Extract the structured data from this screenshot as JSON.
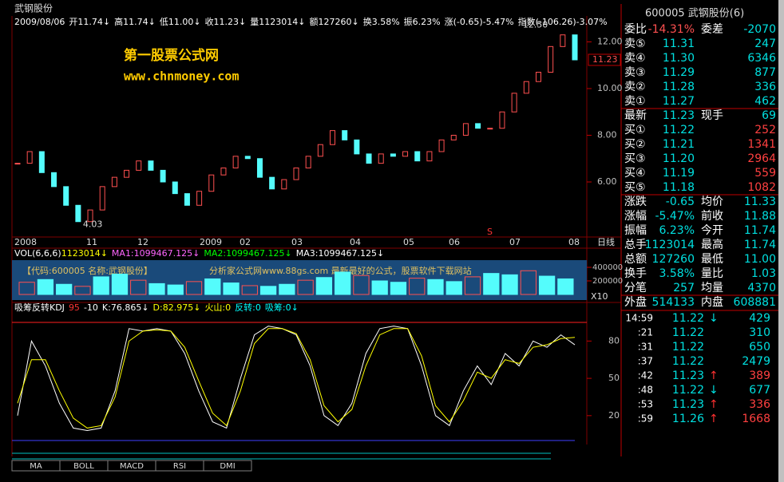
{
  "header": {
    "name": "武钢股份",
    "items": [
      "2009/08/06",
      "开11.74↓",
      "高11.74↓",
      "低11.00↓",
      "收11.23↓",
      "量1123014↓",
      "额127260↓",
      "换3.58%",
      "振6.23%",
      "涨(-0.65)-5.47%",
      "指数(-106.26)-3.07%"
    ]
  },
  "watermark": {
    "title": "第一股票公式网",
    "url": "www.chnmoney.com"
  },
  "price_chart": {
    "type": "candle",
    "ylim": [
      3.71,
      13.11
    ],
    "yticks": [
      {
        "value": 6,
        "label": "6.00"
      },
      {
        "value": 8,
        "label": "8.00"
      },
      {
        "value": 10,
        "label": "10.00"
      },
      {
        "value": 12,
        "label": "12.00"
      }
    ],
    "closes": [
      6.8,
      7.3,
      6.4,
      5.8,
      5.0,
      4.3,
      4.8,
      5.8,
      6.2,
      6.5,
      6.9,
      6.5,
      6.0,
      5.5,
      5.0,
      5.6,
      6.3,
      6.6,
      7.1,
      7.0,
      6.2,
      5.7,
      6.1,
      6.6,
      7.1,
      7.6,
      8.2,
      7.8,
      7.2,
      6.8,
      7.2,
      7.1,
      7.3,
      6.9,
      7.3,
      7.8,
      8.0,
      8.5,
      8.3,
      8.3,
      9.0,
      9.8,
      10.3,
      10.7,
      11.8,
      12.3,
      11.23
    ],
    "high_label": "12.50",
    "low_label": "4.03",
    "last_label": "11.23",
    "dates": [
      "2008",
      "11",
      "12",
      "2009",
      "02",
      "03",
      "04",
      "05",
      "06",
      "07",
      "08"
    ],
    "period": "日线",
    "marker": "S"
  },
  "volume": {
    "header": "VOL(6,6,6)",
    "items": [
      "1123014↓",
      "MA1:1099467.125↓",
      "MA2:1099467.125↓",
      "MA3:1099467.125↓"
    ],
    "ylim": [
      0,
      600000
    ],
    "yticks": [
      200000,
      400000
    ],
    "unit": "X10",
    "banner": "【代码:600005 名称:武钢股份】",
    "banner2": "分析家公式网www.88gs.com 最新最好的公式，股票软件下载网站",
    "values": [
      180000,
      220000,
      150000,
      120000,
      260000,
      300000,
      210000,
      160000,
      140000,
      190000,
      230000,
      170000,
      130000,
      120000,
      150000,
      210000,
      250000,
      330000,
      280000,
      200000,
      180000,
      240000,
      220000,
      190000,
      260000,
      310000,
      290000,
      350000,
      270000,
      230000
    ]
  },
  "kdj": {
    "items": [
      {
        "text": "吸筹反转KDJ",
        "color": "#ffffff"
      },
      {
        "text": "95",
        "color": "#ff3333"
      },
      {
        "text": "-10",
        "color": "#ffffff"
      },
      {
        "text": "K:76.865↓",
        "color": "#ffffff"
      },
      {
        "text": "D:82.975↓",
        "color": "#ffff00"
      },
      {
        "text": "火山:0",
        "color": "#ffff00"
      },
      {
        "text": "反转:0",
        "color": "#00ffff"
      },
      {
        "text": "吸筹:0↓",
        "color": "#00ffff"
      }
    ],
    "ylim": [
      0,
      95
    ],
    "yticks": [
      20,
      50,
      80
    ],
    "k": [
      20,
      80,
      60,
      30,
      10,
      8,
      10,
      40,
      90,
      88,
      90,
      88,
      70,
      40,
      15,
      10,
      50,
      85,
      92,
      90,
      85,
      60,
      20,
      12,
      30,
      70,
      90,
      92,
      90,
      60,
      20,
      12,
      40,
      60,
      45,
      70,
      60,
      80,
      75,
      85,
      77
    ],
    "d": [
      30,
      65,
      65,
      40,
      18,
      10,
      12,
      35,
      80,
      88,
      89,
      88,
      75,
      48,
      22,
      12,
      40,
      78,
      90,
      90,
      86,
      65,
      28,
      15,
      25,
      60,
      85,
      90,
      90,
      68,
      28,
      15,
      32,
      55,
      50,
      65,
      62,
      75,
      77,
      82,
      83
    ]
  },
  "tabs": [
    "MA",
    "BOLL",
    "MACD",
    "RSI",
    "DMI"
  ],
  "quote": {
    "title": "600005 武钢股份(6)",
    "rows": [
      [
        "委比",
        "-14.31%",
        "委差",
        "-2070"
      ],
      [
        "卖⑤",
        "11.31",
        "",
        "247"
      ],
      [
        "卖④",
        "11.30",
        "",
        "6346"
      ],
      [
        "卖③",
        "11.29",
        "",
        "877"
      ],
      [
        "卖②",
        "11.28",
        "",
        "336"
      ],
      [
        "卖①",
        "11.27",
        "",
        "462"
      ],
      [
        "最新",
        "11.23",
        "现手",
        "69"
      ],
      [
        "买①",
        "11.22",
        "",
        "252"
      ],
      [
        "买②",
        "11.21",
        "",
        "1341"
      ],
      [
        "买③",
        "11.20",
        "",
        "2964"
      ],
      [
        "买④",
        "11.19",
        "",
        "559"
      ],
      [
        "买⑤",
        "11.18",
        "",
        "1082"
      ],
      [
        "涨跌",
        "-0.65",
        "均价",
        "11.33"
      ],
      [
        "涨幅",
        "-5.47%",
        "前收",
        "11.88"
      ],
      [
        "振幅",
        "6.23%",
        "今开",
        "11.74"
      ],
      [
        "总手",
        "1123014",
        "最高",
        "11.74"
      ],
      [
        "总额",
        "127260",
        "最低",
        "11.00"
      ],
      [
        "换手",
        "3.58%",
        "量比",
        "1.03"
      ],
      [
        "分笔",
        "257",
        "均量",
        "4370"
      ],
      [
        "外盘",
        "514133",
        "内盘",
        "608881"
      ]
    ],
    "ticks": [
      [
        "14:59",
        "11.22",
        "↓",
        "429"
      ],
      [
        ":21",
        "11.22",
        "",
        "310"
      ],
      [
        ":31",
        "11.22",
        "",
        "650"
      ],
      [
        ":37",
        "11.22",
        "",
        "2479"
      ],
      [
        ":42",
        "11.23",
        "↑",
        "389"
      ],
      [
        ":48",
        "11.22",
        "↓",
        "677"
      ],
      [
        ":53",
        "11.23",
        "↑",
        "336"
      ],
      [
        ":59",
        "11.26",
        "↑",
        "1668"
      ]
    ]
  }
}
